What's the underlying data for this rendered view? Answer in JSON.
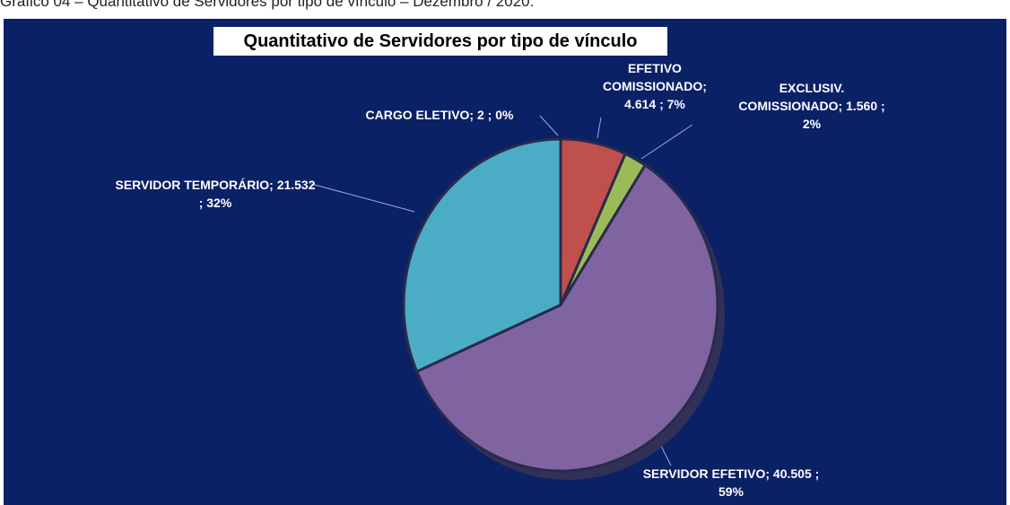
{
  "caption": "Gráfico 04 – Quantitativo de Servidores por tipo de vínculo – Dezembro / 2020.",
  "chart_data": {
    "type": "pie",
    "title": "Quantitativo de Servidores por tipo de vínculo",
    "categories": [
      "CARGO ELETIVO;",
      "EFETIVO COMISSIONADO;",
      "EXCLUSIV. COMISSIONADO;",
      "SERVIDOR EFETIVO;",
      "SERVIDOR TEMPORÁRIO;"
    ],
    "values": [
      2,
      4614,
      1560,
      40505,
      21532
    ],
    "value_labels": [
      "2 ; 0%",
      "4.614 ; 7%",
      "1.560 ; 2%",
      "40.505 ; 59%",
      "21.532 ; 32%"
    ],
    "colors": [
      "#8db3e2",
      "#c0504d",
      "#9bbb59",
      "#8064a2",
      "#4bacc6"
    ]
  }
}
